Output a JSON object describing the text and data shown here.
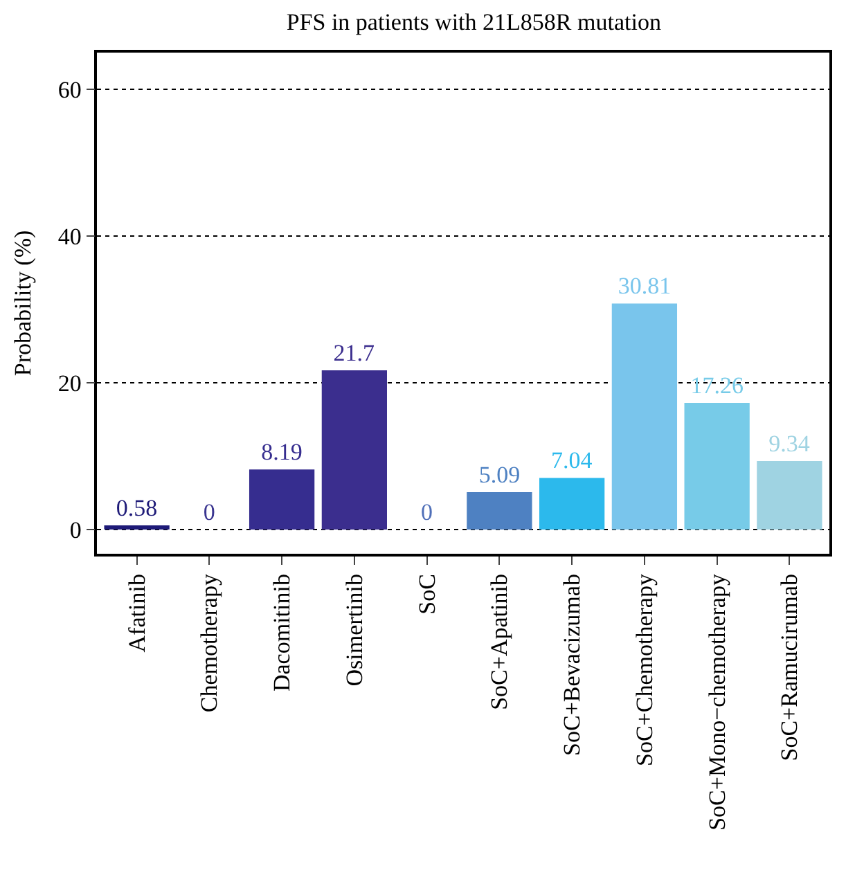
{
  "chart_data": {
    "type": "bar",
    "title": "PFS in patients with 21L858R mutation",
    "ylabel": "Probability (%)",
    "categories": [
      "Afatinib",
      "Chemotherapy",
      "Dacomitinib",
      "Osimertinib",
      "SoC",
      "SoC+Apatinib",
      "SoC+Bevacizumab",
      "SoC+Chemotherapy",
      "SoC+Mono−chemotherapy",
      "SoC+Ramucirumab"
    ],
    "values": [
      0.58,
      0,
      8.19,
      21.7,
      0,
      5.09,
      7.04,
      30.81,
      17.26,
      9.34
    ],
    "colors": [
      "#1e1a78",
      "#3a3590",
      "#362d8f",
      "#3b2e8e",
      "#4f6fb8",
      "#4e81c2",
      "#2cb9ec",
      "#79c5ec",
      "#77cbe8",
      "#9fd3e2"
    ],
    "ylim": [
      -3.3,
      65
    ],
    "yticks": [
      0,
      20,
      40,
      60
    ],
    "grid": "y",
    "data_labels": true
  }
}
